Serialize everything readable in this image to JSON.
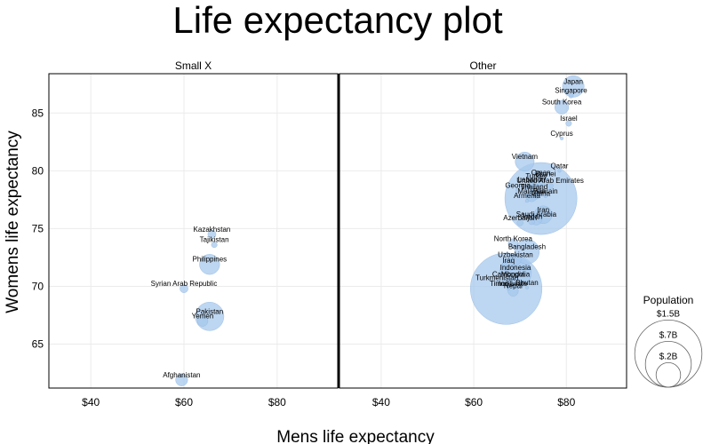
{
  "chart_data": {
    "type": "scatter",
    "title": "Life expectancy plot",
    "xlabel": "Mens life expectancy",
    "ylabel": "Womens life expectancy",
    "xlim": [
      31,
      93
    ],
    "ylim": [
      61.2,
      88.4
    ],
    "x_ticks": [
      40,
      60,
      80
    ],
    "x_tick_labels": [
      "$40",
      "$60",
      "$80"
    ],
    "y_ticks": [
      65,
      70,
      75,
      80,
      85
    ],
    "grid": true,
    "size_legend": {
      "title": "Population",
      "entries": [
        {
          "label": "$1.5B",
          "value": 1.5
        },
        {
          "label": "$.7B",
          "value": 0.7
        },
        {
          "label": "$.2B",
          "value": 0.2
        }
      ]
    },
    "facets": [
      {
        "name": "Small X",
        "points": [
          {
            "label": "Kazakhstan",
            "x": 66.0,
            "y": 74.5,
            "pop": 0.018
          },
          {
            "label": "Tajikistan",
            "x": 66.5,
            "y": 73.6,
            "pop": 0.009
          },
          {
            "label": "Philippines",
            "x": 65.5,
            "y": 71.9,
            "pop": 0.11
          },
          {
            "label": "Syrian Arab Republic",
            "x": 60.0,
            "y": 69.8,
            "pop": 0.018
          },
          {
            "label": "Pakistan",
            "x": 65.5,
            "y": 67.4,
            "pop": 0.22
          },
          {
            "label": "Yemen",
            "x": 64.0,
            "y": 67.0,
            "pop": 0.03
          },
          {
            "label": "Afghanistan",
            "x": 59.5,
            "y": 61.9,
            "pop": 0.039
          }
        ]
      },
      {
        "name": "Other",
        "points": [
          {
            "label": "Japan",
            "x": 81.5,
            "y": 87.3,
            "pop": 0.126
          },
          {
            "label": "Singapore",
            "x": 81.0,
            "y": 86.5,
            "pop": 0.0057
          },
          {
            "label": "South Korea",
            "x": 79.0,
            "y": 85.5,
            "pop": 0.052
          },
          {
            "label": "Israel",
            "x": 80.5,
            "y": 84.1,
            "pop": 0.009
          },
          {
            "label": "Cyprus",
            "x": 79.0,
            "y": 82.8,
            "pop": 0.0012
          },
          {
            "label": "Vietnam",
            "x": 71.0,
            "y": 80.8,
            "pop": 0.097
          },
          {
            "label": "Qatar",
            "x": 78.5,
            "y": 80.0,
            "pop": 0.0029
          },
          {
            "label": "Oman",
            "x": 74.5,
            "y": 79.4,
            "pop": 0.005
          },
          {
            "label": "Brunei",
            "x": 75.5,
            "y": 79.3,
            "pop": 0.0004
          },
          {
            "label": "Turkey",
            "x": 73.5,
            "y": 79.1,
            "pop": 0.084
          },
          {
            "label": "Lebanon",
            "x": 72.5,
            "y": 78.8,
            "pop": 0.007
          },
          {
            "label": "United Arab Emirates",
            "x": 76.5,
            "y": 78.7,
            "pop": 0.0099
          },
          {
            "label": "Georgia",
            "x": 69.5,
            "y": 78.3,
            "pop": 0.004
          },
          {
            "label": "Thailand",
            "x": 73.0,
            "y": 78.2,
            "pop": 0.07
          },
          {
            "label": "Malaysia",
            "x": 72.5,
            "y": 77.8,
            "pop": 0.032
          },
          {
            "label": "Bahrain",
            "x": 75.5,
            "y": 77.8,
            "pop": 0.0017
          },
          {
            "label": "China",
            "x": 74.5,
            "y": 77.6,
            "pop": 1.4
          },
          {
            "label": "Armenia",
            "x": 71.5,
            "y": 77.4,
            "pop": 0.003
          },
          {
            "label": "Iran",
            "x": 75.0,
            "y": 76.2,
            "pop": 0.084
          },
          {
            "label": "Saudi Arabia",
            "x": 73.5,
            "y": 75.8,
            "pop": 0.035
          },
          {
            "label": "Jordan",
            "x": 72.5,
            "y": 75.6,
            "pop": 0.01
          },
          {
            "label": "Azerbaijan",
            "x": 70.0,
            "y": 75.5,
            "pop": 0.01
          },
          {
            "label": "North Korea",
            "x": 68.5,
            "y": 73.7,
            "pop": 0.026
          },
          {
            "label": "Bangladesh",
            "x": 71.5,
            "y": 73.0,
            "pop": 0.165
          },
          {
            "label": "Uzbekistan",
            "x": 69.0,
            "y": 72.3,
            "pop": 0.034
          },
          {
            "label": "Iraq",
            "x": 67.5,
            "y": 71.8,
            "pop": 0.04
          },
          {
            "label": "Indonesia",
            "x": 69.0,
            "y": 71.2,
            "pop": 0.274
          },
          {
            "label": "Cambodia",
            "x": 67.5,
            "y": 70.6,
            "pop": 0.017
          },
          {
            "label": "Mongolia",
            "x": 69.0,
            "y": 70.6,
            "pop": 0.003
          },
          {
            "label": "Turkmenistan",
            "x": 65.0,
            "y": 70.3,
            "pop": 0.006
          },
          {
            "label": "India",
            "x": 67.0,
            "y": 69.8,
            "pop": 1.38
          },
          {
            "label": "Bhutan",
            "x": 71.5,
            "y": 69.9,
            "pop": 0.0008
          },
          {
            "label": "Timor-Leste",
            "x": 67.5,
            "y": 69.8,
            "pop": 0.0013
          },
          {
            "label": "Nepal",
            "x": 68.5,
            "y": 69.6,
            "pop": 0.029
          }
        ]
      }
    ]
  }
}
